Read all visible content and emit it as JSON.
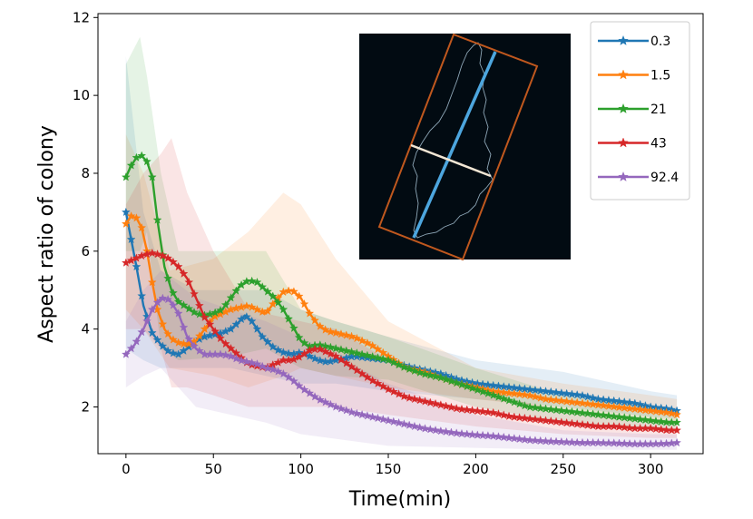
{
  "chart_data": {
    "type": "line",
    "title": "",
    "xlabel": "Time(min)",
    "ylabel": "Aspect ratio of colony",
    "xlim": [
      -16,
      330
    ],
    "ylim": [
      0.8,
      12.1
    ],
    "xticks": [
      0,
      50,
      100,
      150,
      200,
      250,
      300
    ],
    "yticks": [
      2,
      4,
      6,
      8,
      10,
      12
    ],
    "grid": false,
    "legend_position": "top-right",
    "marker": "star",
    "series": [
      {
        "name": "0.3",
        "color": "#1f77b4",
        "points": [
          [
            0,
            7.0
          ],
          [
            3,
            6.3
          ],
          [
            6,
            5.6
          ],
          [
            10,
            4.6
          ],
          [
            15,
            3.9
          ],
          [
            20,
            3.6
          ],
          [
            25,
            3.4
          ],
          [
            30,
            3.35
          ],
          [
            35,
            3.5
          ],
          [
            40,
            3.7
          ],
          [
            45,
            3.8
          ],
          [
            50,
            3.85
          ],
          [
            55,
            3.9
          ],
          [
            60,
            4.0
          ],
          [
            65,
            4.2
          ],
          [
            68,
            4.35
          ],
          [
            72,
            4.2
          ],
          [
            78,
            3.8
          ],
          [
            85,
            3.5
          ],
          [
            90,
            3.4
          ],
          [
            95,
            3.35
          ],
          [
            100,
            3.4
          ],
          [
            105,
            3.3
          ],
          [
            110,
            3.2
          ],
          [
            115,
            3.15
          ],
          [
            120,
            3.2
          ],
          [
            130,
            3.3
          ],
          [
            140,
            3.25
          ],
          [
            150,
            3.2
          ],
          [
            160,
            3.05
          ],
          [
            170,
            2.95
          ],
          [
            180,
            2.85
          ],
          [
            190,
            2.7
          ],
          [
            200,
            2.6
          ],
          [
            210,
            2.55
          ],
          [
            220,
            2.5
          ],
          [
            230,
            2.45
          ],
          [
            240,
            2.4
          ],
          [
            250,
            2.35
          ],
          [
            260,
            2.3
          ],
          [
            270,
            2.2
          ],
          [
            280,
            2.15
          ],
          [
            290,
            2.1
          ],
          [
            300,
            2.0
          ],
          [
            310,
            1.95
          ],
          [
            315,
            1.9
          ]
        ],
        "band": [
          [
            0,
            3.5,
            11.0
          ],
          [
            10,
            3.2,
            7.0
          ],
          [
            20,
            3.0,
            5.5
          ],
          [
            40,
            3.0,
            5.0
          ],
          [
            60,
            3.0,
            5.0
          ],
          [
            80,
            2.8,
            5.0
          ],
          [
            100,
            2.6,
            4.5
          ],
          [
            120,
            2.6,
            4.2
          ],
          [
            150,
            2.4,
            3.8
          ],
          [
            200,
            2.2,
            3.2
          ],
          [
            250,
            2.0,
            2.9
          ],
          [
            300,
            1.75,
            2.4
          ],
          [
            315,
            1.7,
            2.3
          ]
        ]
      },
      {
        "name": "1.5",
        "color": "#ff7f0e",
        "points": [
          [
            0,
            6.7
          ],
          [
            3,
            6.9
          ],
          [
            6,
            6.85
          ],
          [
            9,
            6.6
          ],
          [
            12,
            6.0
          ],
          [
            15,
            5.2
          ],
          [
            18,
            4.5
          ],
          [
            22,
            4.0
          ],
          [
            26,
            3.75
          ],
          [
            30,
            3.65
          ],
          [
            35,
            3.6
          ],
          [
            40,
            3.7
          ],
          [
            45,
            4.0
          ],
          [
            50,
            4.3
          ],
          [
            55,
            4.4
          ],
          [
            60,
            4.5
          ],
          [
            65,
            4.55
          ],
          [
            70,
            4.6
          ],
          [
            75,
            4.5
          ],
          [
            80,
            4.4
          ],
          [
            85,
            4.7
          ],
          [
            90,
            4.95
          ],
          [
            95,
            5.0
          ],
          [
            100,
            4.8
          ],
          [
            105,
            4.4
          ],
          [
            110,
            4.1
          ],
          [
            115,
            3.95
          ],
          [
            120,
            3.9
          ],
          [
            125,
            3.85
          ],
          [
            130,
            3.8
          ],
          [
            140,
            3.6
          ],
          [
            150,
            3.3
          ],
          [
            160,
            3.0
          ],
          [
            170,
            2.9
          ],
          [
            180,
            2.75
          ],
          [
            190,
            2.6
          ],
          [
            200,
            2.5
          ],
          [
            210,
            2.4
          ],
          [
            220,
            2.35
          ],
          [
            230,
            2.3
          ],
          [
            240,
            2.2
          ],
          [
            250,
            2.15
          ],
          [
            260,
            2.1
          ],
          [
            270,
            2.05
          ],
          [
            280,
            2.0
          ],
          [
            290,
            1.95
          ],
          [
            300,
            1.9
          ],
          [
            310,
            1.85
          ],
          [
            315,
            1.8
          ]
        ],
        "band": [
          [
            0,
            4.5,
            9.0
          ],
          [
            10,
            4.0,
            8.0
          ],
          [
            25,
            3.0,
            5.5
          ],
          [
            50,
            2.8,
            5.8
          ],
          [
            70,
            2.5,
            6.5
          ],
          [
            90,
            2.8,
            7.5
          ],
          [
            100,
            3.0,
            7.2
          ],
          [
            120,
            2.8,
            5.8
          ],
          [
            150,
            2.5,
            4.2
          ],
          [
            200,
            2.2,
            3.0
          ],
          [
            250,
            1.95,
            2.6
          ],
          [
            300,
            1.7,
            2.3
          ],
          [
            315,
            1.65,
            2.2
          ]
        ]
      },
      {
        "name": "21",
        "color": "#2ca02c",
        "points": [
          [
            0,
            7.9
          ],
          [
            3,
            8.2
          ],
          [
            6,
            8.4
          ],
          [
            9,
            8.45
          ],
          [
            12,
            8.3
          ],
          [
            15,
            7.9
          ],
          [
            18,
            6.8
          ],
          [
            22,
            5.6
          ],
          [
            26,
            5.0
          ],
          [
            30,
            4.7
          ],
          [
            35,
            4.55
          ],
          [
            40,
            4.4
          ],
          [
            45,
            4.35
          ],
          [
            50,
            4.4
          ],
          [
            55,
            4.5
          ],
          [
            60,
            4.8
          ],
          [
            65,
            5.1
          ],
          [
            70,
            5.25
          ],
          [
            75,
            5.2
          ],
          [
            80,
            5.0
          ],
          [
            85,
            4.8
          ],
          [
            90,
            4.5
          ],
          [
            95,
            4.1
          ],
          [
            100,
            3.7
          ],
          [
            105,
            3.55
          ],
          [
            110,
            3.6
          ],
          [
            120,
            3.5
          ],
          [
            130,
            3.4
          ],
          [
            140,
            3.3
          ],
          [
            150,
            3.2
          ],
          [
            160,
            3.0
          ],
          [
            170,
            2.85
          ],
          [
            180,
            2.75
          ],
          [
            190,
            2.6
          ],
          [
            200,
            2.45
          ],
          [
            210,
            2.3
          ],
          [
            220,
            2.15
          ],
          [
            230,
            2.0
          ],
          [
            240,
            1.95
          ],
          [
            250,
            1.9
          ],
          [
            260,
            1.85
          ],
          [
            270,
            1.8
          ],
          [
            280,
            1.75
          ],
          [
            290,
            1.7
          ],
          [
            300,
            1.65
          ],
          [
            310,
            1.6
          ],
          [
            315,
            1.6
          ]
        ],
        "band": [
          [
            0,
            6.0,
            10.8
          ],
          [
            8,
            6.0,
            11.5
          ],
          [
            12,
            6.5,
            10.5
          ],
          [
            20,
            3.5,
            8.0
          ],
          [
            30,
            3.2,
            6.0
          ],
          [
            60,
            3.3,
            6.0
          ],
          [
            80,
            3.5,
            6.0
          ],
          [
            100,
            3.0,
            4.5
          ],
          [
            120,
            2.8,
            4.2
          ],
          [
            150,
            2.7,
            3.8
          ],
          [
            200,
            2.0,
            3.0
          ],
          [
            250,
            1.6,
            2.3
          ],
          [
            300,
            1.4,
            2.0
          ],
          [
            315,
            1.4,
            1.95
          ]
        ]
      },
      {
        "name": "43",
        "color": "#d62728",
        "points": [
          [
            0,
            5.7
          ],
          [
            5,
            5.8
          ],
          [
            10,
            5.9
          ],
          [
            15,
            5.95
          ],
          [
            20,
            5.9
          ],
          [
            25,
            5.8
          ],
          [
            30,
            5.6
          ],
          [
            35,
            5.3
          ],
          [
            40,
            4.8
          ],
          [
            45,
            4.3
          ],
          [
            50,
            4.0
          ],
          [
            55,
            3.7
          ],
          [
            60,
            3.5
          ],
          [
            65,
            3.3
          ],
          [
            70,
            3.1
          ],
          [
            75,
            3.05
          ],
          [
            80,
            3.0
          ],
          [
            85,
            3.1
          ],
          [
            90,
            3.2
          ],
          [
            95,
            3.2
          ],
          [
            100,
            3.3
          ],
          [
            105,
            3.45
          ],
          [
            110,
            3.5
          ],
          [
            115,
            3.4
          ],
          [
            120,
            3.3
          ],
          [
            125,
            3.15
          ],
          [
            130,
            3.0
          ],
          [
            140,
            2.7
          ],
          [
            150,
            2.45
          ],
          [
            160,
            2.25
          ],
          [
            170,
            2.15
          ],
          [
            180,
            2.05
          ],
          [
            190,
            1.95
          ],
          [
            200,
            1.9
          ],
          [
            210,
            1.85
          ],
          [
            220,
            1.75
          ],
          [
            230,
            1.7
          ],
          [
            240,
            1.65
          ],
          [
            250,
            1.6
          ],
          [
            260,
            1.55
          ],
          [
            270,
            1.5
          ],
          [
            280,
            1.5
          ],
          [
            290,
            1.45
          ],
          [
            300,
            1.45
          ],
          [
            310,
            1.4
          ],
          [
            315,
            1.4
          ]
        ],
        "band": [
          [
            0,
            4.0,
            7.2
          ],
          [
            10,
            4.0,
            8.0
          ],
          [
            20,
            3.5,
            8.5
          ],
          [
            26,
            2.5,
            8.9
          ],
          [
            35,
            2.5,
            7.5
          ],
          [
            50,
            2.3,
            6.0
          ],
          [
            70,
            2.0,
            4.5
          ],
          [
            100,
            2.0,
            4.2
          ],
          [
            120,
            2.0,
            4.0
          ],
          [
            150,
            1.8,
            3.2
          ],
          [
            200,
            1.5,
            2.4
          ],
          [
            250,
            1.3,
            1.9
          ],
          [
            300,
            1.2,
            1.7
          ],
          [
            315,
            1.2,
            1.65
          ]
        ]
      },
      {
        "name": "92.4",
        "color": "#9467bd",
        "points": [
          [
            0,
            3.35
          ],
          [
            5,
            3.6
          ],
          [
            10,
            4.0
          ],
          [
            15,
            4.5
          ],
          [
            20,
            4.8
          ],
          [
            25,
            4.75
          ],
          [
            30,
            4.4
          ],
          [
            35,
            3.8
          ],
          [
            40,
            3.5
          ],
          [
            45,
            3.35
          ],
          [
            50,
            3.35
          ],
          [
            55,
            3.35
          ],
          [
            60,
            3.3
          ],
          [
            65,
            3.2
          ],
          [
            70,
            3.15
          ],
          [
            75,
            3.1
          ],
          [
            80,
            3.0
          ],
          [
            85,
            2.95
          ],
          [
            90,
            2.85
          ],
          [
            95,
            2.7
          ],
          [
            100,
            2.5
          ],
          [
            110,
            2.2
          ],
          [
            120,
            2.0
          ],
          [
            130,
            1.85
          ],
          [
            140,
            1.75
          ],
          [
            150,
            1.65
          ],
          [
            160,
            1.55
          ],
          [
            170,
            1.45
          ],
          [
            180,
            1.38
          ],
          [
            190,
            1.32
          ],
          [
            200,
            1.28
          ],
          [
            210,
            1.25
          ],
          [
            220,
            1.2
          ],
          [
            230,
            1.15
          ],
          [
            240,
            1.12
          ],
          [
            250,
            1.1
          ],
          [
            260,
            1.08
          ],
          [
            270,
            1.08
          ],
          [
            280,
            1.07
          ],
          [
            290,
            1.05
          ],
          [
            300,
            1.05
          ],
          [
            310,
            1.06
          ],
          [
            315,
            1.08
          ]
        ],
        "band": [
          [
            0,
            2.5,
            4.2
          ],
          [
            10,
            2.8,
            5.0
          ],
          [
            20,
            3.0,
            5.5
          ],
          [
            40,
            2.0,
            4.8
          ],
          [
            60,
            1.8,
            4.5
          ],
          [
            80,
            1.6,
            4.2
          ],
          [
            100,
            1.3,
            3.8
          ],
          [
            150,
            1.0,
            2.6
          ],
          [
            200,
            0.95,
            1.8
          ],
          [
            250,
            0.9,
            1.4
          ],
          [
            300,
            0.9,
            1.3
          ],
          [
            315,
            0.9,
            1.3
          ]
        ]
      }
    ]
  }
}
